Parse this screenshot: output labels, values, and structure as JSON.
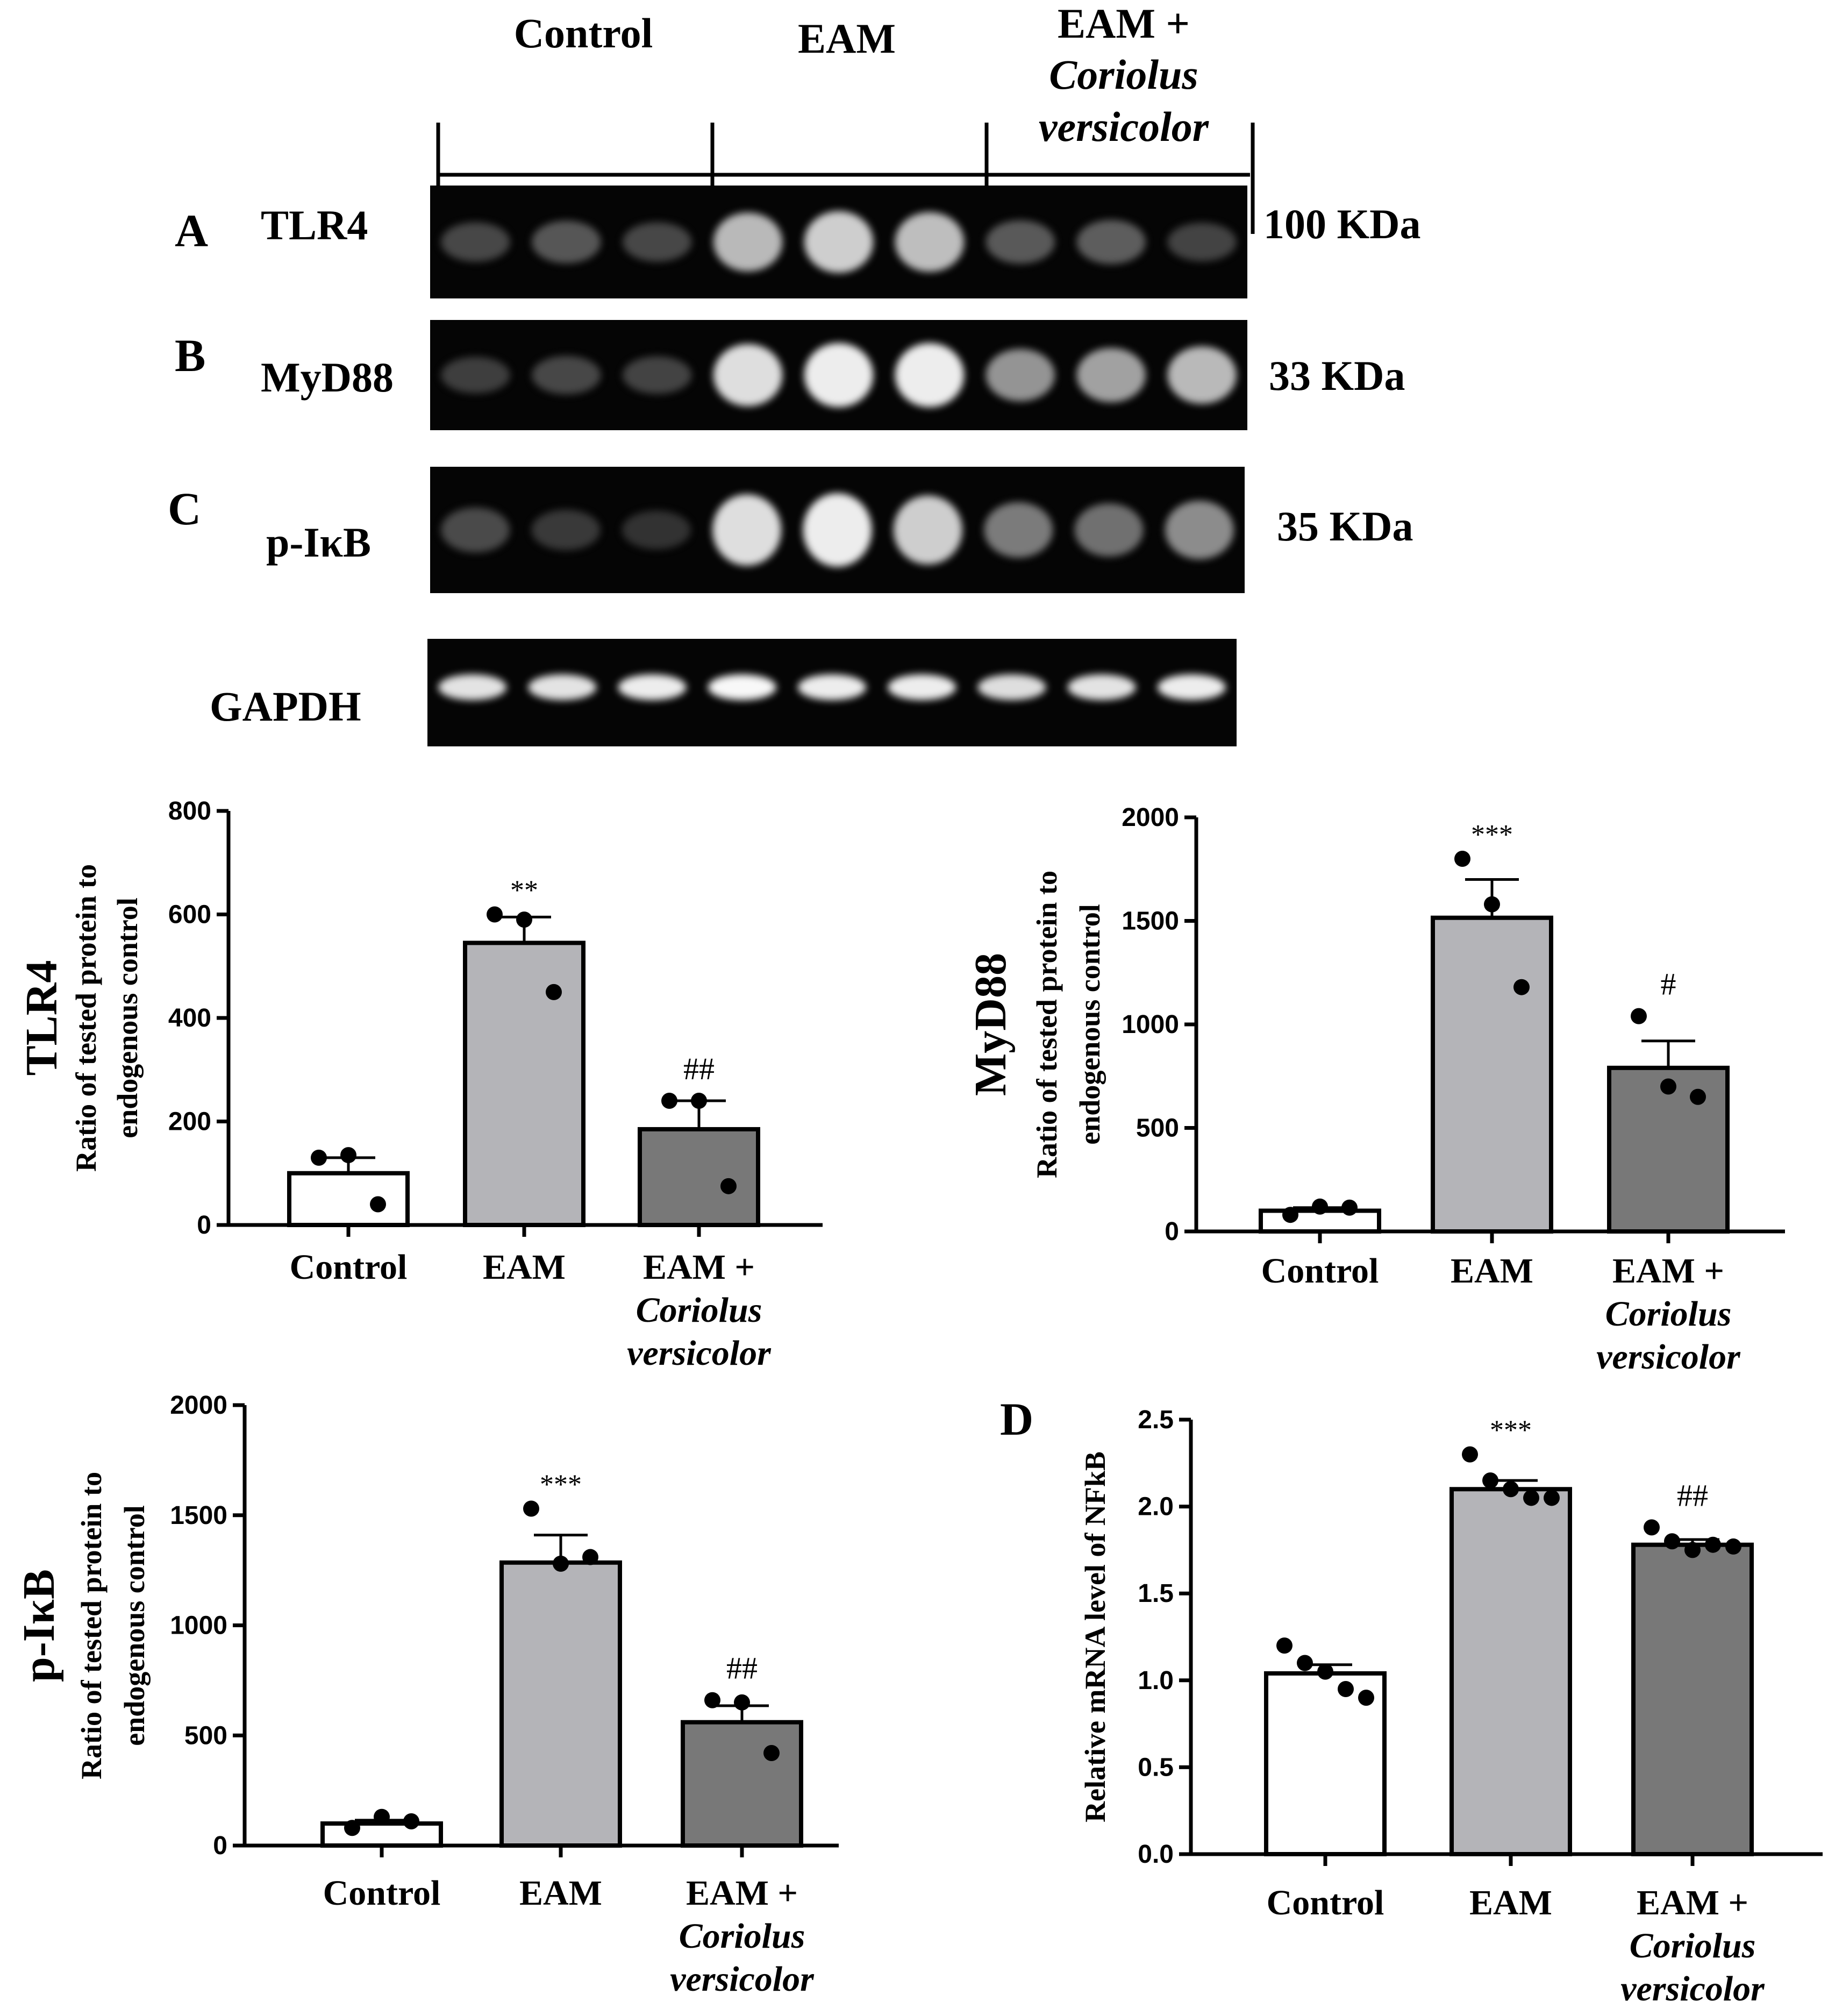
{
  "blot": {
    "groups": [
      {
        "label": "Control",
        "italic": ""
      },
      {
        "label": "EAM",
        "italic": ""
      },
      {
        "label": "EAM +",
        "italic": "Coriolus versicolor"
      }
    ],
    "rows": [
      {
        "panel": "A",
        "protein": "TLR4",
        "size": "100 KDa",
        "bands": [
          0.3,
          0.38,
          0.3,
          0.78,
          0.85,
          0.8,
          0.4,
          0.42,
          0.28
        ]
      },
      {
        "panel": "B",
        "protein": "MyD88",
        "size": "33 KDa",
        "bands": [
          0.25,
          0.3,
          0.28,
          0.9,
          0.95,
          0.95,
          0.65,
          0.7,
          0.78
        ]
      },
      {
        "panel": "C",
        "protein": "p-IκB",
        "size": "35 KDa",
        "bands": [
          0.32,
          0.22,
          0.18,
          0.9,
          0.95,
          0.85,
          0.55,
          0.5,
          0.62
        ]
      },
      {
        "panel": "",
        "protein": "GAPDH",
        "size": "",
        "bands": [
          0.92,
          0.92,
          0.95,
          0.98,
          0.95,
          0.95,
          0.9,
          0.92,
          0.95
        ]
      }
    ]
  },
  "chart_data": [
    {
      "type": "bar",
      "name_label": "TLR4",
      "ylabel": [
        "Ratio of tested protein to",
        "endogenous control"
      ],
      "categories": [
        "Control",
        "EAM",
        "EAM +"
      ],
      "category_italic": [
        "",
        "",
        "Coriolus versicolor"
      ],
      "values": [
        100,
        545,
        185
      ],
      "errors": [
        30,
        50,
        55
      ],
      "points": [
        [
          130,
          135,
          40
        ],
        [
          600,
          590,
          450
        ],
        [
          240,
          240,
          75
        ]
      ],
      "annotations": [
        "",
        "**",
        "##"
      ],
      "bar_colors": [
        "#ffffff",
        "#b4b4b8",
        "#787878"
      ],
      "ylim": [
        0,
        800
      ],
      "yticks": [
        0,
        200,
        400,
        600,
        800
      ]
    },
    {
      "type": "bar",
      "name_label": "MyD88",
      "ylabel": [
        "Ratio of tested protein to",
        "endogenous control"
      ],
      "categories": [
        "Control",
        "EAM",
        "EAM +"
      ],
      "category_italic": [
        "",
        "",
        "Coriolus versicolor"
      ],
      "values": [
        100,
        1515,
        790
      ],
      "errors": [
        15,
        185,
        130
      ],
      "points": [
        [
          80,
          120,
          115
        ],
        [
          1800,
          1580,
          1180
        ],
        [
          1040,
          700,
          650
        ]
      ],
      "annotations": [
        "",
        "***",
        "#"
      ],
      "bar_colors": [
        "#ffffff",
        "#b4b4b8",
        "#787878"
      ],
      "ylim": [
        0,
        2000
      ],
      "yticks": [
        0,
        500,
        1000,
        1500,
        2000
      ]
    },
    {
      "type": "bar",
      "name_label": "p-IκB",
      "ylabel": [
        "Ratio of tested protein to",
        "endogenous control"
      ],
      "categories": [
        "Control",
        "EAM",
        "EAM +"
      ],
      "category_italic": [
        "",
        "",
        "Coriolus versicolor"
      ],
      "values": [
        100,
        1285,
        560
      ],
      "errors": [
        15,
        125,
        75
      ],
      "points": [
        [
          80,
          130,
          110
        ],
        [
          1530,
          1280,
          1310
        ],
        [
          660,
          650,
          420
        ]
      ],
      "annotations": [
        "",
        "***",
        "##"
      ],
      "bar_colors": [
        "#ffffff",
        "#b4b4b8",
        "#787878"
      ],
      "ylim": [
        0,
        2000
      ],
      "yticks": [
        0,
        500,
        1000,
        1500,
        2000
      ]
    },
    {
      "type": "bar",
      "panel_letter": "D",
      "name_label": "",
      "ylabel": [
        "Relative mRNA level of NFkB"
      ],
      "categories": [
        "Control",
        "EAM",
        "EAM +"
      ],
      "category_italic": [
        "",
        "",
        "Coriolus versicolor"
      ],
      "values": [
        1.04,
        2.1,
        1.78
      ],
      "errors": [
        0.05,
        0.05,
        0.03
      ],
      "points": [
        [
          1.2,
          1.1,
          1.05,
          0.95,
          0.9
        ],
        [
          2.3,
          2.15,
          2.1,
          2.05,
          2.05
        ],
        [
          1.88,
          1.8,
          1.75,
          1.78,
          1.77
        ]
      ],
      "annotations": [
        "",
        "***",
        "##"
      ],
      "bar_colors": [
        "#ffffff",
        "#b4b4b8",
        "#787878"
      ],
      "ylim": [
        0,
        2.5
      ],
      "yticks": [
        "0.0",
        "0.5",
        "1.0",
        "1.5",
        "2.0",
        "2.5"
      ]
    }
  ]
}
